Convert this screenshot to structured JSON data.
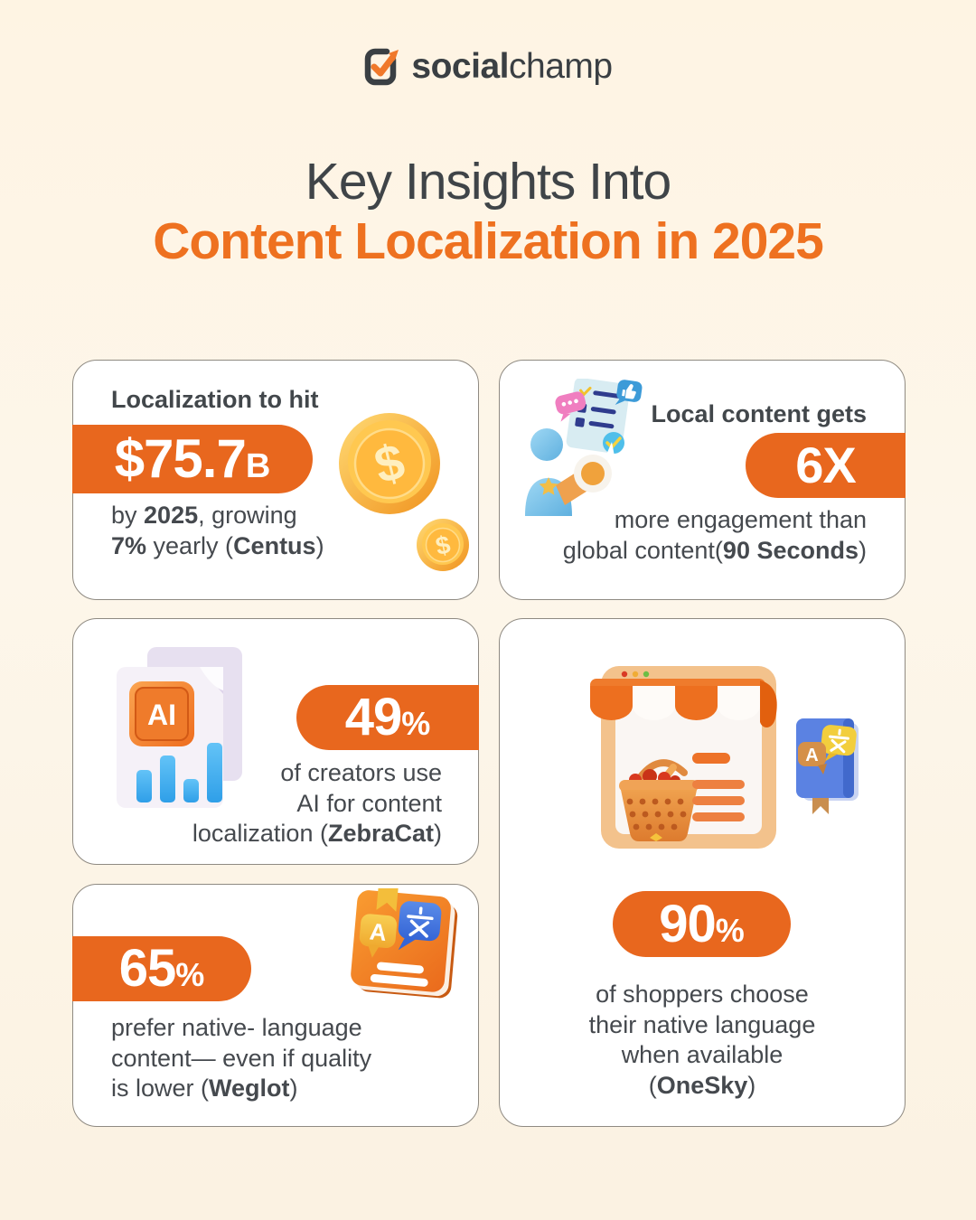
{
  "theme": {
    "background_top": "#FEF4E3",
    "background_bottom": "#FBF2E2",
    "card_background": "#FFFFFF",
    "card_border": "#8F8A82",
    "accent_orange": "#E8671E",
    "title_orange": "#EE7120",
    "text_dark": "#42474B"
  },
  "logo": {
    "brand_bold": "social",
    "brand_light": "champ"
  },
  "title": {
    "line1": "Key Insights Into",
    "line2": "Content Localization in 2025"
  },
  "cards": {
    "market": {
      "intro": "Localization to hit",
      "stat_value": "$75.7",
      "stat_unit": "B",
      "body": [
        [
          {
            "t": "by "
          },
          {
            "t": "2025",
            "b": true
          },
          {
            "t": ", growing"
          }
        ],
        [
          {
            "t": "7%",
            "b": true
          },
          {
            "t": " yearly ("
          },
          {
            "t": "Centus",
            "b": true
          },
          {
            "t": ")"
          }
        ]
      ],
      "icon": "dollar-coins"
    },
    "engagement": {
      "intro": "Local content gets",
      "stat_value": "6X",
      "stat_unit": "",
      "body": [
        [
          {
            "t": "more engagement than"
          }
        ],
        [
          {
            "t": "global content("
          },
          {
            "t": "90 Seconds",
            "b": true
          },
          {
            "t": ")"
          }
        ]
      ],
      "icon": "announcement-person"
    },
    "ai": {
      "stat_value": "49",
      "stat_unit": "%",
      "body": [
        [
          {
            "t": "of creators use"
          }
        ],
        [
          {
            "t": "AI for content"
          }
        ],
        [
          {
            "t": "localization ("
          },
          {
            "t": "ZebraCat",
            "b": true
          },
          {
            "t": ")"
          }
        ]
      ],
      "icon": "ai-document"
    },
    "native_language": {
      "stat_value": "65",
      "stat_unit": "%",
      "body": [
        [
          {
            "t": "prefer native- language"
          }
        ],
        [
          {
            "t": "content— even if quality"
          }
        ],
        [
          {
            "t": "is lower ("
          },
          {
            "t": "Weglot",
            "b": true
          },
          {
            "t": ")"
          }
        ]
      ],
      "icon": "translation-book"
    },
    "shoppers": {
      "stat_value": "90",
      "stat_unit": "%",
      "body": [
        [
          {
            "t": "of shoppers choose"
          }
        ],
        [
          {
            "t": "their native language"
          }
        ],
        [
          {
            "t": "when available"
          }
        ],
        [
          {
            "t": "("
          },
          {
            "t": "OneSky",
            "b": true
          },
          {
            "t": ")"
          }
        ]
      ],
      "icon": "storefront-translation"
    }
  }
}
